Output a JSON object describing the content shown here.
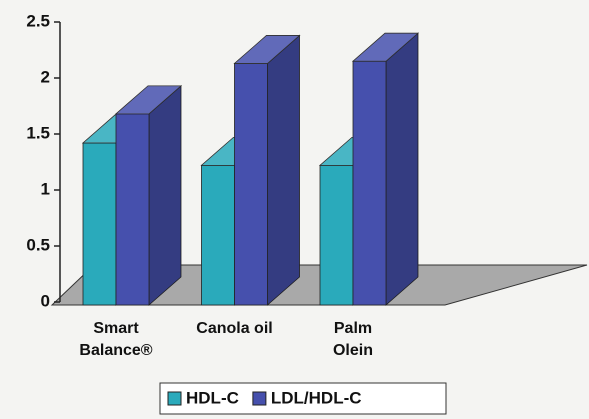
{
  "chart_data": {
    "type": "bar3d",
    "categories": [
      "Smart Balance®",
      "Canola oil",
      "Palm Olein"
    ],
    "series": [
      {
        "name": "HDL-C",
        "color": "#2aaabb",
        "values": [
          1.42,
          1.22,
          1.22
        ]
      },
      {
        "name": "LDL/HDL-C",
        "color": "#4650ad",
        "values": [
          1.68,
          2.13,
          2.15
        ]
      }
    ],
    "ylim": [
      0,
      2.5
    ],
    "yticks": [
      0,
      0.5,
      1,
      1.5,
      2,
      2.5
    ]
  }
}
